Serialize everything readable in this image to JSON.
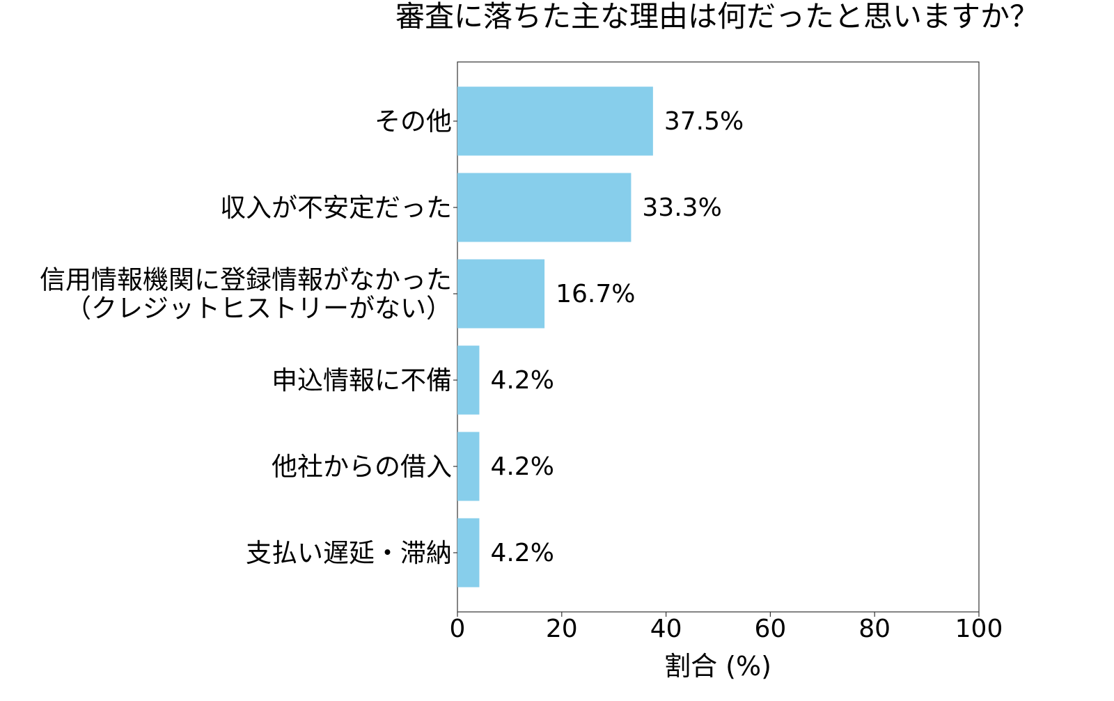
{
  "chart_data": {
    "type": "bar",
    "orientation": "horizontal",
    "title": "審査に落ちた主な理由は何だったと思いますか？",
    "xlabel": "割合 (%)",
    "ylabel": "",
    "xlim": [
      0,
      100
    ],
    "xticks": [
      0,
      20,
      40,
      60,
      80,
      100
    ],
    "categories": [
      [
        "その他"
      ],
      [
        "収入が不安定だった"
      ],
      [
        "信用情報機関に登録情報がなかった",
        "（クレジットヒストリーがない）"
      ],
      [
        "申込情報に不備"
      ],
      [
        "他社からの借入"
      ],
      [
        "支払い遅延・滞納"
      ]
    ],
    "values": [
      37.5,
      33.3,
      16.7,
      4.2,
      4.2,
      4.2
    ],
    "value_labels": [
      "37.5%",
      "33.3%",
      "16.7%",
      "4.2%",
      "4.2%",
      "4.2%"
    ],
    "bar_color": "#87CEEB",
    "grid": false,
    "legend": "none"
  }
}
